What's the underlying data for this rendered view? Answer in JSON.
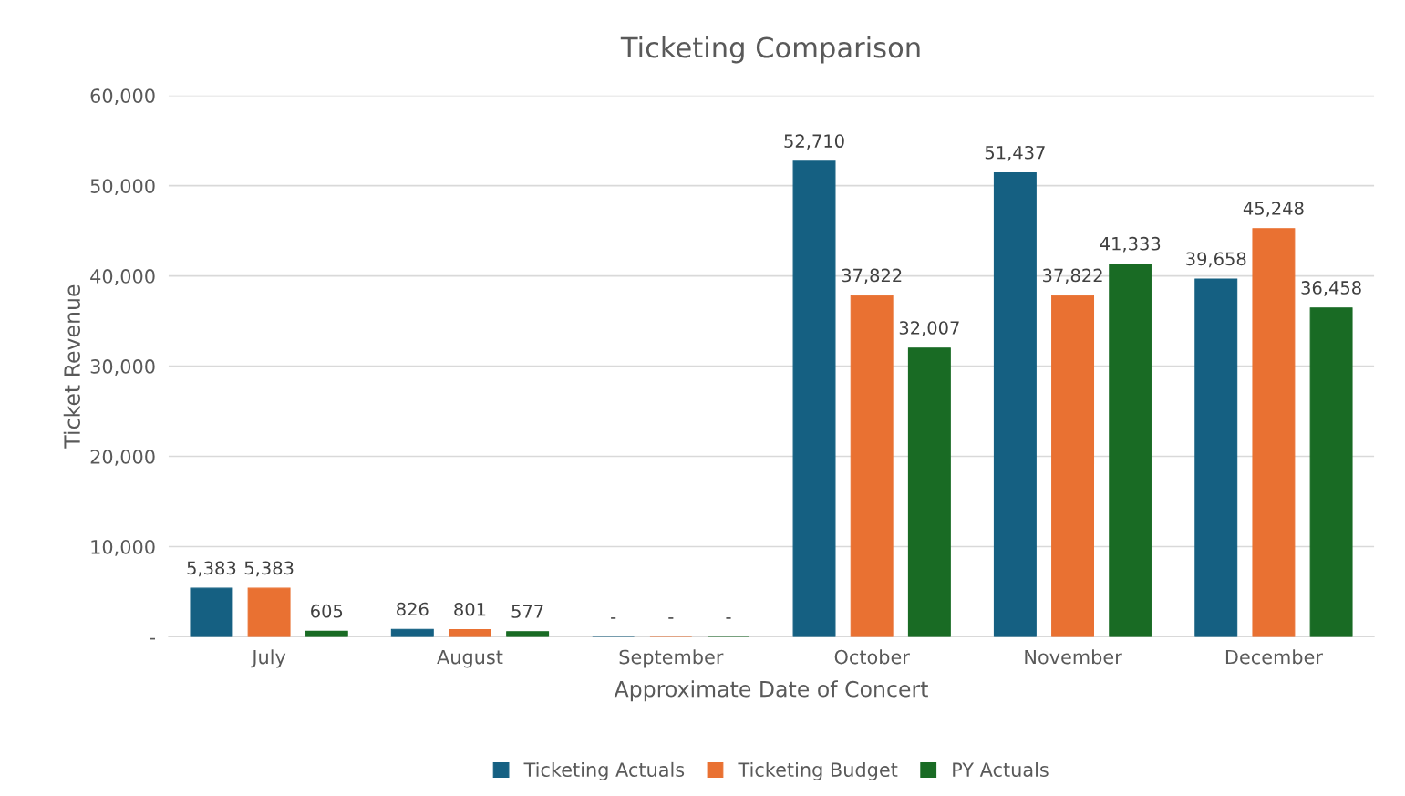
{
  "chart_data": {
    "type": "bar",
    "title": "Ticketing Comparison",
    "xlabel": "Approximate Date of Concert",
    "ylabel": "Ticket Revenue",
    "categories": [
      "July",
      "August",
      "September",
      "October",
      "November",
      "December"
    ],
    "series": [
      {
        "name": "Ticketing Actuals",
        "color": "#156082",
        "values": [
          5383,
          826,
          0,
          52710,
          51437,
          39658
        ],
        "value_labels": [
          "5,383",
          "826",
          "-",
          "52,710",
          "51,437",
          "39,658"
        ]
      },
      {
        "name": "Ticketing Budget",
        "color": "#e97132",
        "values": [
          5383,
          801,
          0,
          37822,
          37822,
          45248
        ],
        "value_labels": [
          "5,383",
          "801",
          "-",
          "37,822",
          "37,822",
          "45,248"
        ]
      },
      {
        "name": "PY Actuals",
        "color": "#196b24",
        "values": [
          605,
          577,
          0,
          32007,
          41333,
          36458
        ],
        "value_labels": [
          "605",
          "577",
          "-",
          "32,007",
          "41,333",
          "36,458"
        ]
      }
    ],
    "ylim": [
      0,
      60000
    ],
    "yticks": [
      {
        "value": 0,
        "label": "-"
      },
      {
        "value": 10000,
        "label": "10,000"
      },
      {
        "value": 20000,
        "label": "20,000"
      },
      {
        "value": 30000,
        "label": "30,000"
      },
      {
        "value": 40000,
        "label": "40,000"
      },
      {
        "value": 50000,
        "label": "50,000"
      },
      {
        "value": 60000,
        "label": "60,000"
      }
    ],
    "grid": "y",
    "legend": "bottom"
  }
}
